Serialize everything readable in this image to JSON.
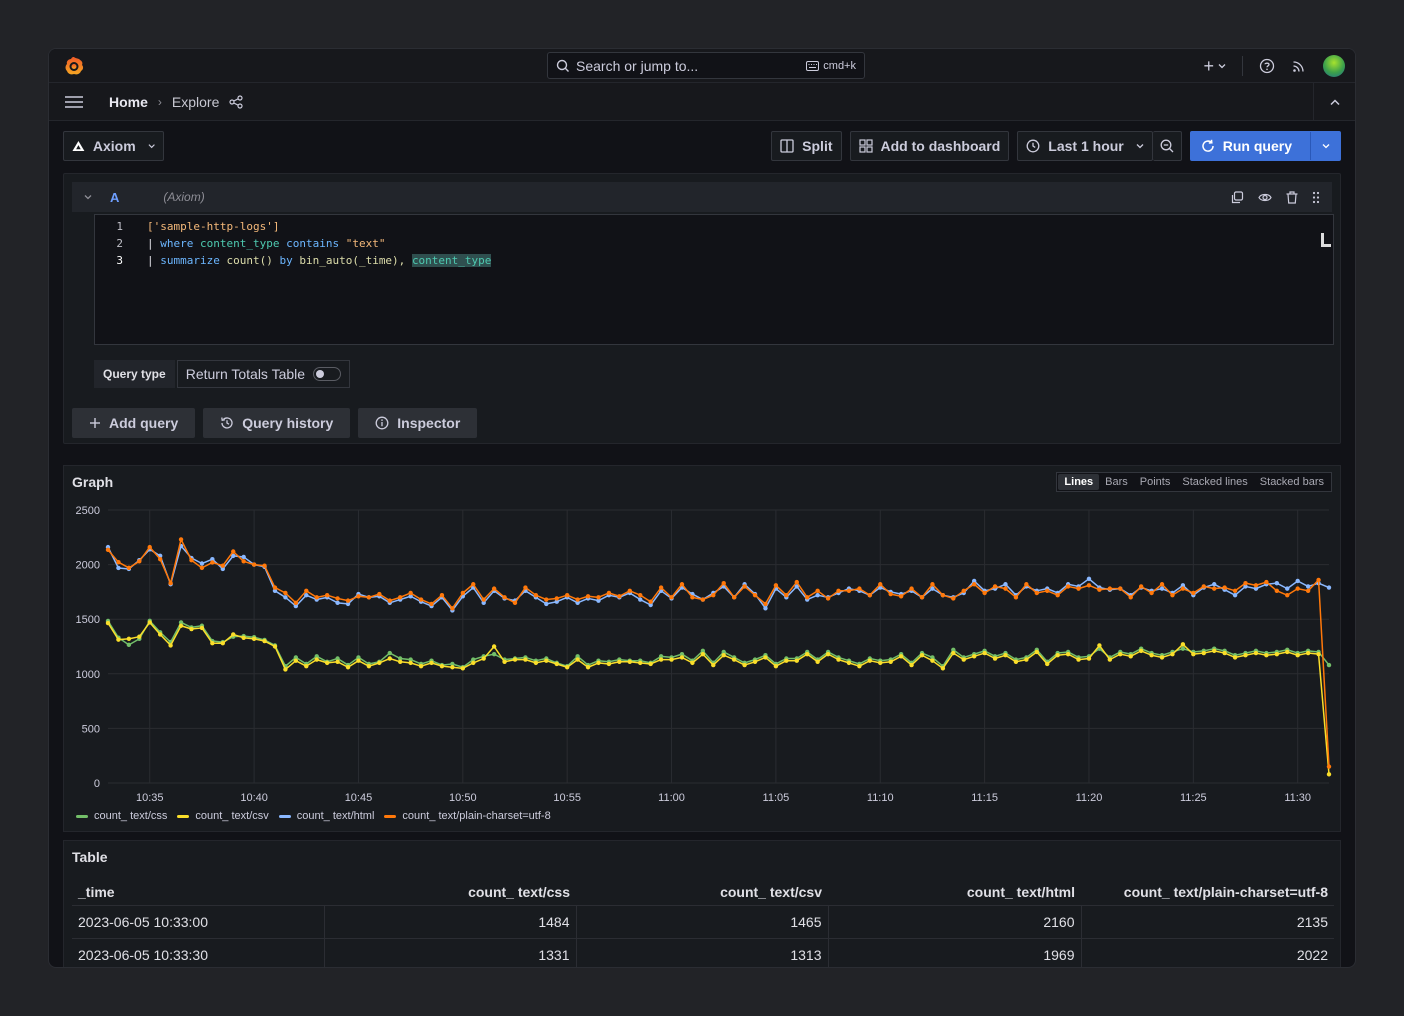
{
  "topbar": {
    "search_placeholder": "Search or jump to...",
    "shortcut": "cmd+k",
    "plus_label": "+"
  },
  "breadcrumb": {
    "home": "Home",
    "current": "Explore"
  },
  "toolbar": {
    "datasource": "Axiom",
    "split": "Split",
    "add_to_dashboard": "Add to dashboard",
    "time_range": "Last 1 hour",
    "run_query": "Run query"
  },
  "query": {
    "letter": "A",
    "datasource": "(Axiom)",
    "lines": [
      "1",
      "2",
      "3"
    ],
    "line1": "['sample-http-logs']",
    "line2_pipe": "| ",
    "line2_kw": "where",
    "line2_field": "content_type",
    "line2_op": "contains",
    "line2_str": "\"text\"",
    "line3_pipe": "| ",
    "line3_kw": "summarize",
    "line3_fn": "count()",
    "line3_by": "by",
    "line3_bin": "bin_auto(_time),",
    "line3_field": "content_type",
    "type_label": "Query type",
    "type_value": "Return Totals Table",
    "add_query": "Add query",
    "query_history": "Query history",
    "inspector": "Inspector"
  },
  "graph": {
    "title": "Graph",
    "modes": [
      "Lines",
      "Bars",
      "Points",
      "Stacked lines",
      "Stacked bars"
    ],
    "active_mode": "Lines"
  },
  "chart_data": {
    "type": "line",
    "ylim": [
      0,
      2500
    ],
    "yticks": [
      "0",
      "500",
      "1000",
      "1500",
      "2000",
      "2500"
    ],
    "xticks": [
      "10:35",
      "10:40",
      "10:45",
      "10:50",
      "10:55",
      "11:00",
      "11:05",
      "11:10",
      "11:15",
      "11:20",
      "11:25",
      "11:30"
    ],
    "x_start": "10:33:00",
    "x_step_seconds": 30,
    "legend_position": "bottom-left",
    "series": [
      {
        "name": "count_ text/css",
        "color": "#73bf69",
        "values": [
          1484,
          1331,
          1265,
          1320,
          1485,
          1380,
          1290,
          1470,
          1425,
          1440,
          1300,
          1290,
          1340,
          1345,
          1335,
          1310,
          1260,
          1070,
          1150,
          1090,
          1160,
          1110,
          1140,
          1080,
          1150,
          1090,
          1110,
          1190,
          1140,
          1130,
          1090,
          1120,
          1080,
          1090,
          1060,
          1130,
          1160,
          1180,
          1130,
          1140,
          1150,
          1120,
          1140,
          1100,
          1070,
          1160,
          1080,
          1120,
          1110,
          1130,
          1120,
          1120,
          1100,
          1160,
          1150,
          1180,
          1120,
          1210,
          1100,
          1200,
          1150,
          1100,
          1130,
          1170,
          1090,
          1140,
          1140,
          1200,
          1130,
          1200,
          1150,
          1120,
          1090,
          1140,
          1120,
          1130,
          1180,
          1100,
          1190,
          1150,
          1070,
          1220,
          1150,
          1180,
          1210,
          1160,
          1190,
          1130,
          1150,
          1220,
          1110,
          1190,
          1200,
          1150,
          1160,
          1230,
          1150,
          1200,
          1180,
          1230,
          1190,
          1170,
          1200,
          1230,
          1200,
          1210,
          1230,
          1210,
          1170,
          1190,
          1210,
          1190,
          1200,
          1220,
          1190,
          1210,
          1200,
          1080
        ]
      },
      {
        "name": "count_ text/csv",
        "color": "#fade2a",
        "values": [
          1465,
          1313,
          1320,
          1340,
          1470,
          1360,
          1260,
          1440,
          1410,
          1420,
          1280,
          1280,
          1360,
          1330,
          1320,
          1300,
          1250,
          1040,
          1120,
          1070,
          1130,
          1100,
          1110,
          1060,
          1120,
          1070,
          1100,
          1140,
          1110,
          1100,
          1070,
          1100,
          1070,
          1060,
          1050,
          1100,
          1140,
          1250,
          1110,
          1130,
          1130,
          1100,
          1120,
          1090,
          1060,
          1130,
          1060,
          1100,
          1090,
          1110,
          1110,
          1100,
          1090,
          1130,
          1130,
          1150,
          1100,
          1180,
          1080,
          1170,
          1130,
          1080,
          1110,
          1150,
          1070,
          1120,
          1120,
          1180,
          1110,
          1180,
          1130,
          1100,
          1070,
          1120,
          1100,
          1110,
          1160,
          1080,
          1170,
          1120,
          1050,
          1190,
          1130,
          1160,
          1190,
          1140,
          1170,
          1110,
          1130,
          1200,
          1090,
          1170,
          1180,
          1130,
          1140,
          1260,
          1130,
          1180,
          1160,
          1210,
          1170,
          1150,
          1180,
          1270,
          1180,
          1190,
          1210,
          1190,
          1150,
          1170,
          1190,
          1170,
          1180,
          1200,
          1170,
          1190,
          1180,
          80
        ]
      },
      {
        "name": "count_ text/html",
        "color": "#8ab8ff",
        "values": [
          2160,
          1969,
          1960,
          2040,
          2140,
          2080,
          1820,
          2170,
          2060,
          2010,
          2050,
          1960,
          2080,
          2070,
          2000,
          1980,
          1760,
          1700,
          1620,
          1720,
          1680,
          1700,
          1650,
          1640,
          1730,
          1700,
          1710,
          1650,
          1680,
          1710,
          1660,
          1620,
          1700,
          1580,
          1710,
          1790,
          1650,
          1760,
          1690,
          1670,
          1760,
          1700,
          1640,
          1660,
          1700,
          1650,
          1690,
          1670,
          1720,
          1700,
          1740,
          1680,
          1630,
          1760,
          1690,
          1790,
          1730,
          1680,
          1740,
          1800,
          1700,
          1820,
          1730,
          1600,
          1780,
          1700,
          1800,
          1680,
          1720,
          1700,
          1740,
          1780,
          1760,
          1720,
          1790,
          1750,
          1730,
          1760,
          1700,
          1780,
          1720,
          1700,
          1740,
          1850,
          1760,
          1780,
          1820,
          1720,
          1800,
          1760,
          1780,
          1740,
          1820,
          1800,
          1870,
          1790,
          1770,
          1780,
          1720,
          1790,
          1760,
          1780,
          1740,
          1810,
          1720,
          1790,
          1820,
          1770,
          1720,
          1800,
          1780,
          1820,
          1830,
          1780,
          1850,
          1800,
          1830,
          1790
        ]
      },
      {
        "name": "count_ text/plain-charset=utf-8",
        "color": "#ff780a",
        "values": [
          2135,
          2022,
          1970,
          2030,
          2160,
          2050,
          1830,
          2230,
          2040,
          1970,
          2020,
          1990,
          2120,
          2030,
          2000,
          1990,
          1790,
          1740,
          1650,
          1760,
          1700,
          1720,
          1690,
          1670,
          1710,
          1700,
          1730,
          1670,
          1700,
          1740,
          1680,
          1640,
          1720,
          1600,
          1740,
          1820,
          1680,
          1780,
          1700,
          1650,
          1790,
          1720,
          1680,
          1690,
          1720,
          1680,
          1710,
          1700,
          1740,
          1710,
          1760,
          1720,
          1660,
          1790,
          1700,
          1820,
          1700,
          1680,
          1720,
          1830,
          1700,
          1800,
          1720,
          1640,
          1810,
          1720,
          1840,
          1700,
          1760,
          1690,
          1760,
          1760,
          1780,
          1720,
          1820,
          1730,
          1710,
          1780,
          1700,
          1820,
          1720,
          1690,
          1760,
          1820,
          1740,
          1800,
          1780,
          1700,
          1820,
          1740,
          1760,
          1720,
          1800,
          1780,
          1810,
          1770,
          1780,
          1780,
          1700,
          1800,
          1740,
          1820,
          1720,
          1780,
          1740,
          1800,
          1780,
          1790,
          1760,
          1830,
          1810,
          1840,
          1760,
          1720,
          1780,
          1760,
          1860,
          150
        ]
      }
    ]
  },
  "table": {
    "title": "Table",
    "columns": [
      "_time",
      "count_ text/css",
      "count_ text/csv",
      "count_ text/html",
      "count_ text/plain-charset=utf-8"
    ],
    "rows": [
      [
        "2023-06-05 10:33:00",
        "1484",
        "1465",
        "2160",
        "2135"
      ],
      [
        "2023-06-05 10:33:30",
        "1331",
        "1313",
        "1969",
        "2022"
      ]
    ]
  }
}
